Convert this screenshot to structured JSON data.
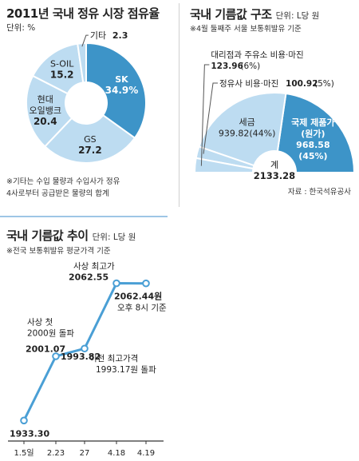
{
  "colors": {
    "dark": "#3d94c8",
    "light": "#bddcf1",
    "line": "#4a9fd5",
    "text": "#222222",
    "white": "#ffffff"
  },
  "panel1": {
    "title": "2011년 국내 정유 시장 점유율",
    "unit": "단위: %",
    "note": [
      "※기타는 수입 물량과 수입사가 정유",
      "4사로부터 공급받은 물량의 합계"
    ]
  },
  "panel2": {
    "title": "국내 기름값 구조",
    "unit": "단위: L당 원",
    "note": "※4월 둘째주 서울 보통휘발유 기준",
    "source": "자료 : 한국석유공사",
    "total_label": "계",
    "total_value": "2133.28"
  },
  "panel3": {
    "title": "국내 기름값 추이",
    "unit": "단위: L당 원",
    "note": "※전국 보통휘발유 평균가격 기준",
    "annotations": {
      "first_2000": [
        "사상 첫",
        "2000원 돌파"
      ],
      "prev_high": [
        "이전 최고가격",
        "1993.17원 돌파"
      ],
      "record": "사상 최고가",
      "latest_note": "오후 8시 기준"
    }
  },
  "chart_data": [
    {
      "type": "pie",
      "title": "2011년 국내 정유 시장 점유율",
      "unit": "단위: %",
      "slices": [
        {
          "name": "SK",
          "value": 34.9,
          "label": "34.9%"
        },
        {
          "name": "GS",
          "value": 27.2,
          "label": "27.2"
        },
        {
          "name": "현대오일뱅크",
          "display": [
            "현대",
            "오일뱅크"
          ],
          "value": 20.4,
          "label": "20.4"
        },
        {
          "name": "S-OIL",
          "value": 15.2,
          "label": "15.2"
        },
        {
          "name": "기타",
          "value": 2.3,
          "label": "2.3"
        }
      ]
    },
    {
      "type": "pie",
      "subtype": "semicircle",
      "title": "국내 기름값 구조",
      "unit": "단위: L당 원",
      "total": 2133.28,
      "slices": [
        {
          "name": "국제 제품가(원가)",
          "display": [
            "국제 제품가",
            "(원가)"
          ],
          "value": 968.58,
          "percent": 45
        },
        {
          "name": "세금",
          "value": 939.82,
          "percent": 44
        },
        {
          "name": "정유사 비용·마진",
          "value": 100.92,
          "percent": 5
        },
        {
          "name": "대리점과 주유소 비용·마진",
          "value": 123.96,
          "percent": 6
        }
      ]
    },
    {
      "type": "line",
      "title": "국내 기름값 추이",
      "unit": "단위: L당 원",
      "x": [
        "1.5일",
        "2.23",
        "27",
        "4.18",
        "4.19"
      ],
      "y": [
        1933.3,
        1993.82,
        2001.07,
        2062.55,
        2062.44
      ],
      "labels": [
        "1933.30",
        "1993.82",
        "2001.07",
        "2062.55",
        "2062.44원"
      ],
      "ylim": [
        1920,
        2075
      ]
    }
  ]
}
